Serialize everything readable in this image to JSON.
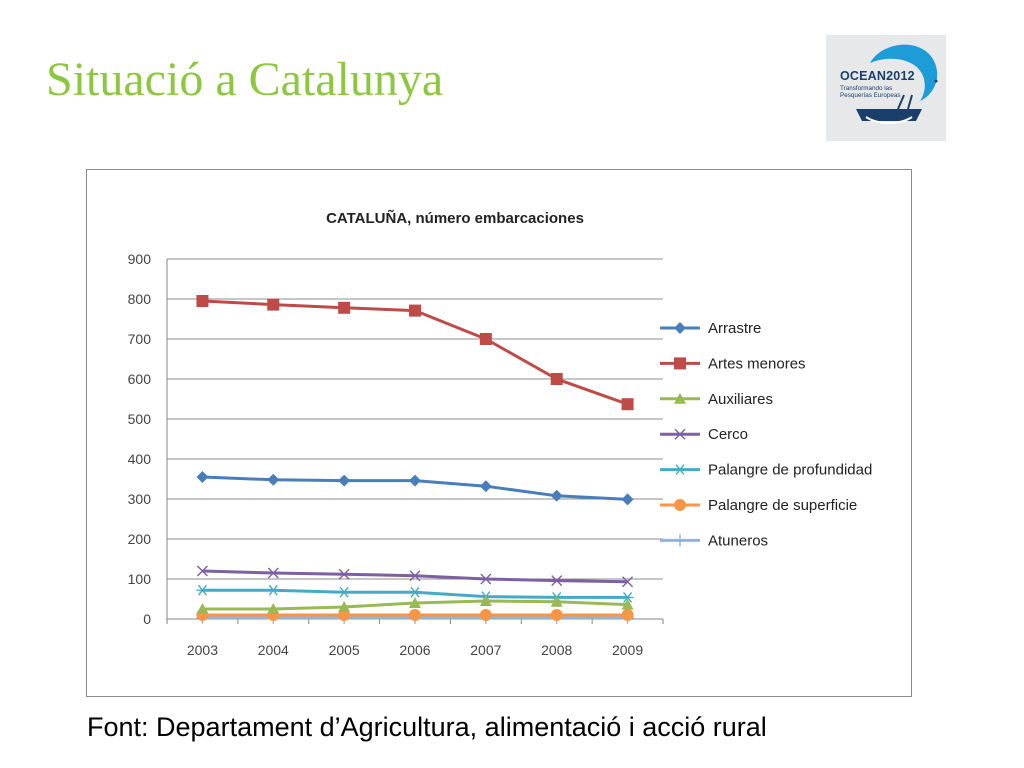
{
  "slide": {
    "title": "Situació a Catalunya",
    "source": "Font: Departament d’Agricultura, alimentació i acció rural"
  },
  "logo": {
    "main": "OCEAN2012",
    "line1": "Transformando las",
    "line2": "Pesquerías Europeas",
    "colors": {
      "primary": "#1b3f6b",
      "accent": "#1e9cd7"
    }
  },
  "colors": {
    "title": "#8dc63f"
  },
  "chart_data": {
    "type": "line",
    "title": "CATALUÑA, número embarcaciones",
    "xlabel": "",
    "ylabel": "",
    "categories": [
      "2003",
      "2004",
      "2005",
      "2006",
      "2007",
      "2008",
      "2009"
    ],
    "ylim": [
      0,
      900
    ],
    "yticks": [
      0,
      100,
      200,
      300,
      400,
      500,
      600,
      700,
      800,
      900
    ],
    "grid": true,
    "legend_position": "right",
    "series": [
      {
        "name": "Arrastre",
        "color": "#4a7ebb",
        "marker": "diamond",
        "values": [
          355,
          348,
          346,
          346,
          332,
          308,
          299
        ]
      },
      {
        "name": "Artes menores",
        "color": "#be4b48",
        "marker": "square",
        "values": [
          795,
          786,
          778,
          771,
          700,
          600,
          537
        ]
      },
      {
        "name": "Auxiliares",
        "color": "#98b954",
        "marker": "triangle",
        "values": [
          25,
          25,
          30,
          40,
          45,
          43,
          36
        ]
      },
      {
        "name": "Cerco",
        "color": "#7d60a0",
        "marker": "x",
        "values": [
          120,
          115,
          112,
          108,
          100,
          96,
          93
        ]
      },
      {
        "name": "Palangre de profundidad",
        "color": "#46aac5",
        "marker": "star",
        "values": [
          72,
          72,
          67,
          67,
          56,
          54,
          54
        ]
      },
      {
        "name": "Palangre de superficie",
        "color": "#f79646",
        "marker": "circle",
        "values": [
          10,
          10,
          10,
          10,
          10,
          10,
          10
        ]
      },
      {
        "name": "Atuneros",
        "color": "#95b3d7",
        "marker": "plus",
        "values": [
          3,
          3,
          3,
          3,
          3,
          3,
          3
        ]
      }
    ]
  }
}
